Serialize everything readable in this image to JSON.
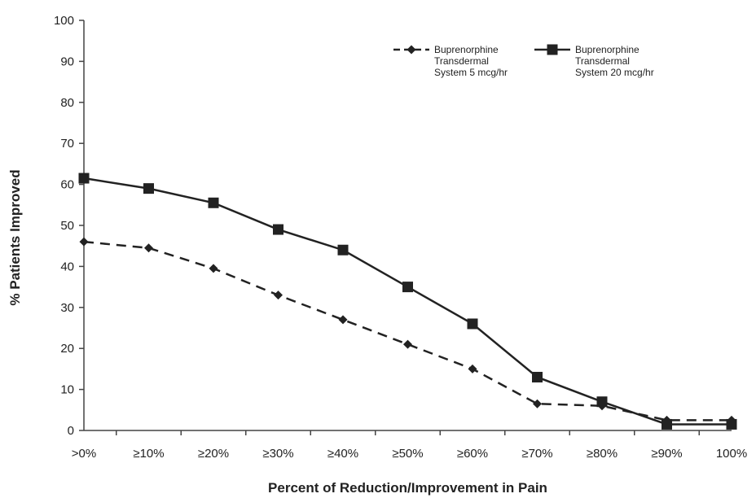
{
  "chart_data": {
    "type": "line",
    "title": "",
    "xlabel": "Percent of Reduction/Improvement in Pain",
    "ylabel": "% Patients Improved",
    "categories": [
      ">0%",
      "≥10%",
      "≥20%",
      "≥30%",
      "≥40%",
      "≥50%",
      "≥60%",
      "≥70%",
      "≥80%",
      "≥90%",
      "100%"
    ],
    "ylim": [
      0,
      100
    ],
    "yticks": [
      0,
      10,
      20,
      30,
      40,
      50,
      60,
      70,
      80,
      90,
      100
    ],
    "grid": false,
    "legend_position": "top-right",
    "series": [
      {
        "name_lines": [
          "Buprenorphine",
          "Transdermal",
          "System 5 mcg/hr"
        ],
        "line_style": "dashed",
        "marker": "diamond",
        "color": "#222222",
        "values": [
          46,
          44.5,
          39.5,
          33,
          27,
          21,
          15,
          6.5,
          6,
          2.5,
          2.5
        ]
      },
      {
        "name_lines": [
          "Buprenorphine",
          "Transdermal",
          "System 20 mcg/hr"
        ],
        "line_style": "solid",
        "marker": "square",
        "color": "#222222",
        "values": [
          61.5,
          59,
          55.5,
          49,
          44,
          35,
          26,
          13,
          7,
          1.5,
          1.5
        ]
      }
    ]
  }
}
